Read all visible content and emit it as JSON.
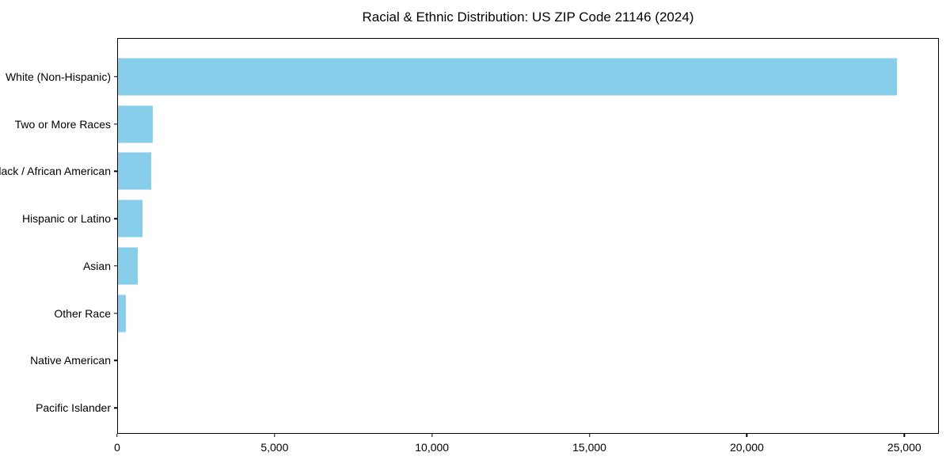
{
  "chart_data": {
    "type": "bar",
    "orientation": "horizontal",
    "title": "Racial & Ethnic Distribution: US ZIP Code 21146 (2024)",
    "categories": [
      "White (Non-Hispanic)",
      "Two or More Races",
      "Black / African American",
      "Hispanic or Latino",
      "Asian",
      "Other Race",
      "Native American",
      "Pacific Islander"
    ],
    "values": [
      24800,
      1110,
      1050,
      790,
      630,
      240,
      0,
      0
    ],
    "xlabel": "",
    "ylabel": "",
    "xlim": [
      0,
      26100
    ],
    "xticks": [
      0,
      5000,
      10000,
      15000,
      20000,
      25000
    ],
    "xtick_labels": [
      "0",
      "5,000",
      "10,000",
      "15,000",
      "20,000",
      "25,000"
    ],
    "bar_color": "#87CEEB",
    "background_color": "#ffffff",
    "axis_color": "#000000",
    "grid": false,
    "legend": "none"
  }
}
